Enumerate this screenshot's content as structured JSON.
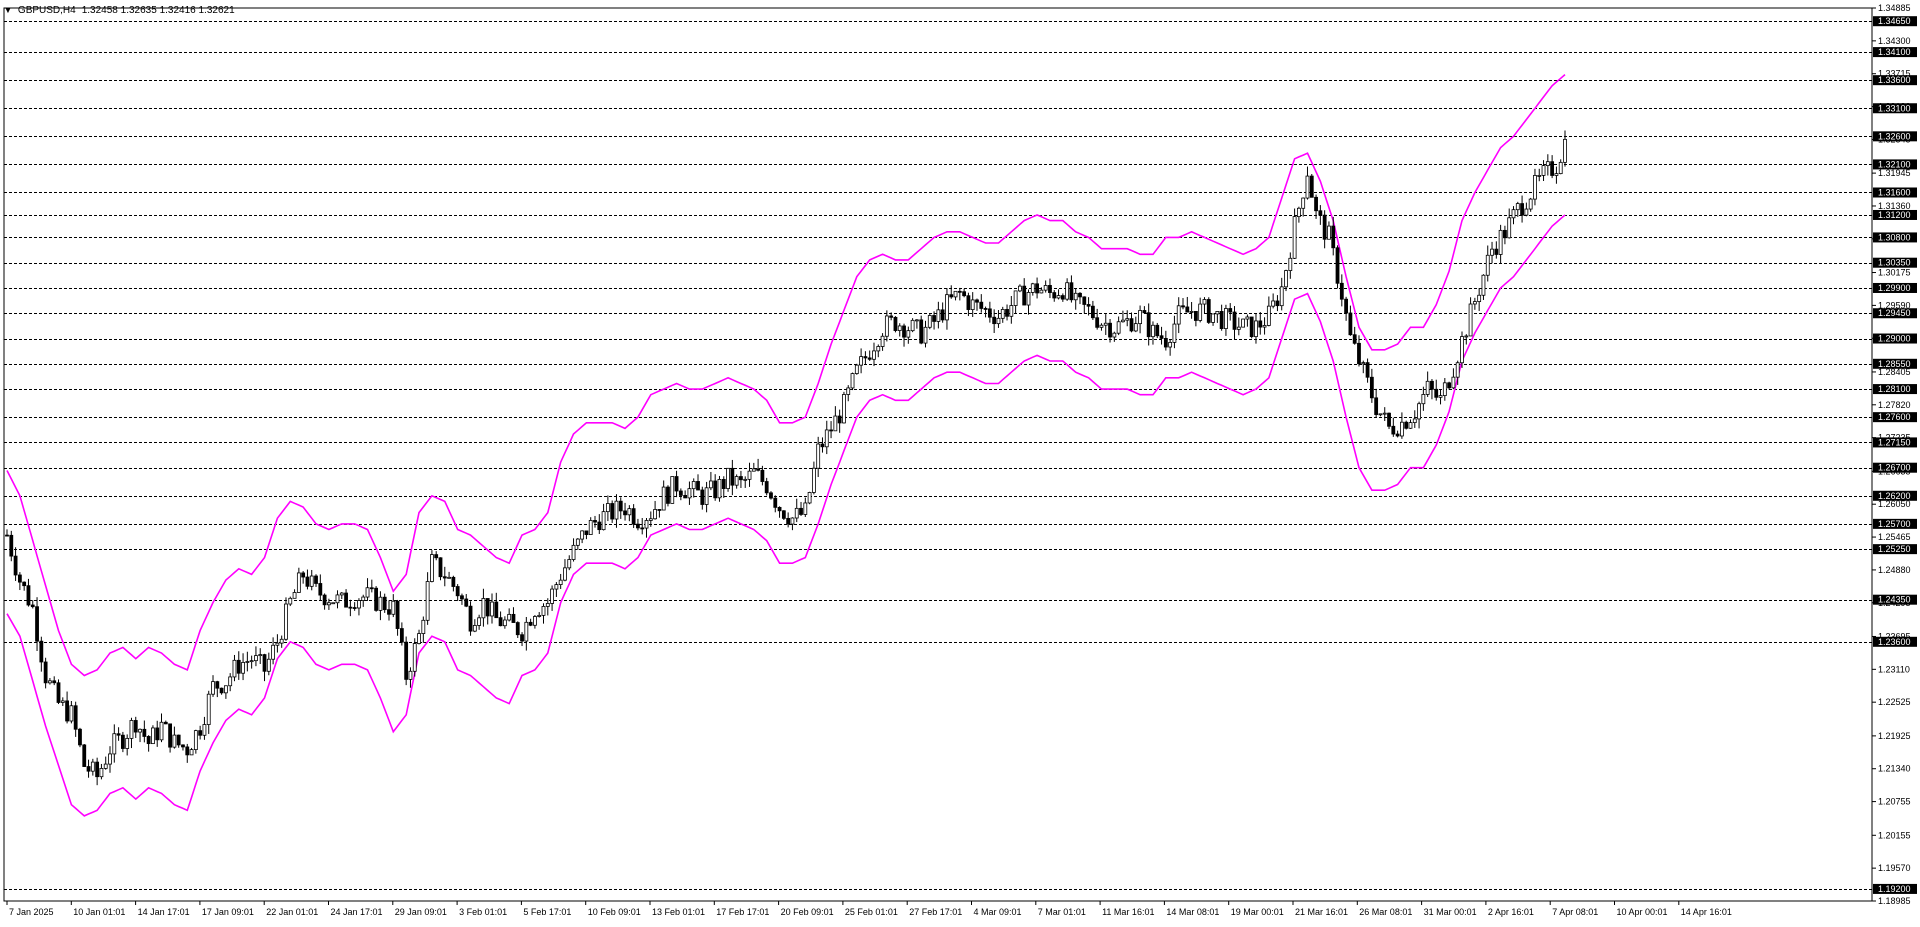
{
  "header": {
    "symbol_label": "GBPUSD,H4",
    "ohlc": "1.32458 1.32635 1.32416 1.32621"
  },
  "colors": {
    "background": "#ffffff",
    "candle": "#000000",
    "envelope": "#ff00ff",
    "level_line": "#000000",
    "level_tag_bg": "#000000",
    "level_tag_fg": "#ffffff"
  },
  "chart_data": {
    "type": "candlestick",
    "symbol": "GBPUSD",
    "timeframe": "H4",
    "ylim": [
      1.18985,
      1.34885
    ],
    "y_tick_labels": [
      "1.34885",
      "1.34300",
      "1.33715",
      "1.33130",
      "1.32545",
      "1.31945",
      "1.31360",
      "1.30775",
      "1.30175",
      "1.29590",
      "1.29005",
      "1.28405",
      "1.27820",
      "1.27235",
      "1.26635",
      "1.26050",
      "1.25465",
      "1.24880",
      "1.24295",
      "1.23695",
      "1.23110",
      "1.22525",
      "1.21925",
      "1.21340",
      "1.20755",
      "1.20155",
      "1.19570",
      "1.18985"
    ],
    "levels": [
      "1.34650",
      "1.34100",
      "1.33600",
      "1.33100",
      "1.32600",
      "1.32100",
      "1.31600",
      "1.31200",
      "1.30800",
      "1.30350",
      "1.29900",
      "1.29450",
      "1.29000",
      "1.28550",
      "1.28100",
      "1.27600",
      "1.27150",
      "1.26700",
      "1.26200",
      "1.25700",
      "1.25250",
      "1.24350",
      "1.23600",
      "1.19200"
    ],
    "x_labels": [
      "7 Jan 2025",
      "10 Jan 01:01",
      "14 Jan 17:01",
      "17 Jan 09:01",
      "22 Jan 01:01",
      "24 Jan 17:01",
      "29 Jan 09:01",
      "3 Feb 01:01",
      "5 Feb 17:01",
      "10 Feb 09:01",
      "13 Feb 01:01",
      "17 Feb 17:01",
      "20 Feb 09:01",
      "25 Feb 01:01",
      "27 Feb 17:01",
      "4 Mar 09:01",
      "7 Mar 01:01",
      "11 Mar 16:01",
      "14 Mar 08:01",
      "19 Mar 00:01",
      "21 Mar 16:01",
      "26 Mar 08:01",
      "31 Mar 00:01",
      "2 Apr 16:01",
      "7 Apr 08:01",
      "10 Apr 00:01",
      "14 Apr 16:01"
    ],
    "close_path": [
      [
        0,
        1.255
      ],
      [
        3,
        1.247
      ],
      [
        6,
        1.242
      ],
      [
        9,
        1.23
      ],
      [
        12,
        1.225
      ],
      [
        15,
        1.223
      ],
      [
        18,
        1.214
      ],
      [
        21,
        1.212
      ],
      [
        24,
        1.217
      ],
      [
        27,
        1.219
      ],
      [
        30,
        1.222
      ],
      [
        33,
        1.218
      ],
      [
        36,
        1.221
      ],
      [
        39,
        1.218
      ],
      [
        42,
        1.217
      ],
      [
        45,
        1.221
      ],
      [
        48,
        1.228
      ],
      [
        51,
        1.229
      ],
      [
        54,
        1.232
      ],
      [
        57,
        1.233
      ],
      [
        60,
        1.231
      ],
      [
        63,
        1.236
      ],
      [
        66,
        1.243
      ],
      [
        69,
        1.248
      ],
      [
        72,
        1.245
      ],
      [
        75,
        1.244
      ],
      [
        78,
        1.243
      ],
      [
        81,
        1.244
      ],
      [
        84,
        1.244
      ],
      [
        87,
        1.243
      ],
      [
        90,
        1.242
      ],
      [
        93,
        1.23
      ],
      [
        96,
        1.237
      ],
      [
        99,
        1.25
      ],
      [
        102,
        1.248
      ],
      [
        105,
        1.245
      ],
      [
        108,
        1.24
      ],
      [
        111,
        1.243
      ],
      [
        114,
        1.24
      ],
      [
        117,
        1.239
      ],
      [
        120,
        1.238
      ],
      [
        123,
        1.242
      ],
      [
        126,
        1.243
      ],
      [
        129,
        1.248
      ],
      [
        132,
        1.252
      ],
      [
        135,
        1.256
      ],
      [
        138,
        1.258
      ],
      [
        141,
        1.259
      ],
      [
        144,
        1.26
      ],
      [
        147,
        1.258
      ],
      [
        150,
        1.259
      ],
      [
        153,
        1.262
      ],
      [
        156,
        1.264
      ],
      [
        159,
        1.263
      ],
      [
        162,
        1.262
      ],
      [
        165,
        1.263
      ],
      [
        168,
        1.265
      ],
      [
        171,
        1.264
      ],
      [
        174,
        1.266
      ],
      [
        177,
        1.264
      ],
      [
        180,
        1.26
      ],
      [
        183,
        1.258
      ],
      [
        186,
        1.259
      ],
      [
        189,
        1.27
      ],
      [
        192,
        1.274
      ],
      [
        195,
        1.278
      ],
      [
        198,
        1.284
      ],
      [
        201,
        1.288
      ],
      [
        204,
        1.292
      ],
      [
        207,
        1.293
      ],
      [
        210,
        1.292
      ],
      [
        213,
        1.291
      ],
      [
        216,
        1.293
      ],
      [
        219,
        1.296
      ],
      [
        222,
        1.298
      ],
      [
        225,
        1.296
      ],
      [
        228,
        1.295
      ],
      [
        231,
        1.294
      ],
      [
        234,
        1.296
      ],
      [
        237,
        1.298
      ],
      [
        240,
        1.299
      ],
      [
        243,
        1.298
      ],
      [
        246,
        1.299
      ],
      [
        249,
        1.296
      ],
      [
        252,
        1.295
      ],
      [
        255,
        1.293
      ],
      [
        258,
        1.292
      ],
      [
        261,
        1.293
      ],
      [
        264,
        1.294
      ],
      [
        267,
        1.291
      ],
      [
        270,
        1.29
      ],
      [
        273,
        1.294
      ],
      [
        276,
        1.295
      ],
      [
        279,
        1.295
      ],
      [
        282,
        1.294
      ],
      [
        285,
        1.293
      ],
      [
        288,
        1.292
      ],
      [
        291,
        1.292
      ],
      [
        294,
        1.294
      ],
      [
        297,
        1.299
      ],
      [
        300,
        1.31
      ],
      [
        303,
        1.32
      ],
      [
        305,
        1.312
      ],
      [
        308,
        1.308
      ],
      [
        311,
        1.298
      ],
      [
        313,
        1.29
      ],
      [
        316,
        1.284
      ],
      [
        319,
        1.278
      ],
      [
        322,
        1.274
      ],
      [
        325,
        1.275
      ],
      [
        328,
        1.277
      ],
      [
        331,
        1.281
      ],
      [
        334,
        1.279
      ],
      [
        337,
        1.285
      ],
      [
        340,
        1.292
      ],
      [
        343,
        1.299
      ],
      [
        346,
        1.306
      ],
      [
        349,
        1.309
      ],
      [
        352,
        1.313
      ],
      [
        355,
        1.316
      ],
      [
        358,
        1.319
      ],
      [
        361,
        1.321
      ],
      [
        363,
        1.325
      ]
    ],
    "upper_envelope": [
      [
        0,
        1.2665
      ],
      [
        3,
        1.262
      ],
      [
        6,
        1.254
      ],
      [
        9,
        1.246
      ],
      [
        12,
        1.238
      ],
      [
        15,
        1.232
      ],
      [
        18,
        1.23
      ],
      [
        21,
        1.231
      ],
      [
        24,
        1.234
      ],
      [
        27,
        1.235
      ],
      [
        30,
        1.233
      ],
      [
        33,
        1.235
      ],
      [
        36,
        1.234
      ],
      [
        39,
        1.232
      ],
      [
        42,
        1.231
      ],
      [
        45,
        1.238
      ],
      [
        48,
        1.243
      ],
      [
        51,
        1.247
      ],
      [
        54,
        1.249
      ],
      [
        57,
        1.248
      ],
      [
        60,
        1.251
      ],
      [
        63,
        1.258
      ],
      [
        66,
        1.261
      ],
      [
        69,
        1.26
      ],
      [
        72,
        1.257
      ],
      [
        75,
        1.256
      ],
      [
        78,
        1.257
      ],
      [
        81,
        1.257
      ],
      [
        84,
        1.256
      ],
      [
        87,
        1.251
      ],
      [
        90,
        1.245
      ],
      [
        93,
        1.248
      ],
      [
        96,
        1.259
      ],
      [
        99,
        1.262
      ],
      [
        102,
        1.261
      ],
      [
        105,
        1.256
      ],
      [
        108,
        1.255
      ],
      [
        111,
        1.253
      ],
      [
        114,
        1.251
      ],
      [
        117,
        1.25
      ],
      [
        120,
        1.255
      ],
      [
        123,
        1.256
      ],
      [
        126,
        1.259
      ],
      [
        129,
        1.268
      ],
      [
        132,
        1.273
      ],
      [
        135,
        1.275
      ],
      [
        138,
        1.275
      ],
      [
        141,
        1.275
      ],
      [
        144,
        1.274
      ],
      [
        147,
        1.276
      ],
      [
        150,
        1.28
      ],
      [
        153,
        1.281
      ],
      [
        156,
        1.282
      ],
      [
        159,
        1.281
      ],
      [
        162,
        1.281
      ],
      [
        165,
        1.282
      ],
      [
        168,
        1.283
      ],
      [
        171,
        1.282
      ],
      [
        174,
        1.281
      ],
      [
        177,
        1.279
      ],
      [
        180,
        1.275
      ],
      [
        183,
        1.275
      ],
      [
        186,
        1.276
      ],
      [
        189,
        1.282
      ],
      [
        192,
        1.289
      ],
      [
        195,
        1.295
      ],
      [
        198,
        1.301
      ],
      [
        201,
        1.304
      ],
      [
        204,
        1.305
      ],
      [
        207,
        1.304
      ],
      [
        210,
        1.304
      ],
      [
        213,
        1.306
      ],
      [
        216,
        1.308
      ],
      [
        219,
        1.309
      ],
      [
        222,
        1.309
      ],
      [
        225,
        1.308
      ],
      [
        228,
        1.307
      ],
      [
        231,
        1.307
      ],
      [
        234,
        1.309
      ],
      [
        237,
        1.311
      ],
      [
        240,
        1.312
      ],
      [
        243,
        1.311
      ],
      [
        246,
        1.311
      ],
      [
        249,
        1.309
      ],
      [
        252,
        1.308
      ],
      [
        255,
        1.306
      ],
      [
        258,
        1.306
      ],
      [
        261,
        1.306
      ],
      [
        264,
        1.305
      ],
      [
        267,
        1.305
      ],
      [
        270,
        1.308
      ],
      [
        273,
        1.308
      ],
      [
        276,
        1.309
      ],
      [
        279,
        1.308
      ],
      [
        282,
        1.307
      ],
      [
        285,
        1.306
      ],
      [
        288,
        1.305
      ],
      [
        291,
        1.306
      ],
      [
        294,
        1.308
      ],
      [
        297,
        1.315
      ],
      [
        300,
        1.322
      ],
      [
        303,
        1.323
      ],
      [
        306,
        1.318
      ],
      [
        309,
        1.311
      ],
      [
        312,
        1.301
      ],
      [
        315,
        1.292
      ],
      [
        318,
        1.288
      ],
      [
        321,
        1.288
      ],
      [
        324,
        1.289
      ],
      [
        327,
        1.292
      ],
      [
        330,
        1.292
      ],
      [
        333,
        1.296
      ],
      [
        336,
        1.302
      ],
      [
        339,
        1.311
      ],
      [
        342,
        1.316
      ],
      [
        345,
        1.32
      ],
      [
        348,
        1.324
      ],
      [
        351,
        1.326
      ],
      [
        354,
        1.329
      ],
      [
        357,
        1.332
      ],
      [
        360,
        1.335
      ],
      [
        363,
        1.337
      ]
    ],
    "lower_envelope": [
      [
        0,
        1.241
      ],
      [
        3,
        1.237
      ],
      [
        6,
        1.229
      ],
      [
        9,
        1.221
      ],
      [
        12,
        1.214
      ],
      [
        15,
        1.207
      ],
      [
        18,
        1.205
      ],
      [
        21,
        1.206
      ],
      [
        24,
        1.209
      ],
      [
        27,
        1.21
      ],
      [
        30,
        1.208
      ],
      [
        33,
        1.21
      ],
      [
        36,
        1.209
      ],
      [
        39,
        1.207
      ],
      [
        42,
        1.206
      ],
      [
        45,
        1.213
      ],
      [
        48,
        1.218
      ],
      [
        51,
        1.222
      ],
      [
        54,
        1.224
      ],
      [
        57,
        1.223
      ],
      [
        60,
        1.226
      ],
      [
        63,
        1.233
      ],
      [
        66,
        1.236
      ],
      [
        69,
        1.235
      ],
      [
        72,
        1.232
      ],
      [
        75,
        1.231
      ],
      [
        78,
        1.232
      ],
      [
        81,
        1.232
      ],
      [
        84,
        1.231
      ],
      [
        87,
        1.226
      ],
      [
        90,
        1.22
      ],
      [
        93,
        1.223
      ],
      [
        96,
        1.234
      ],
      [
        99,
        1.237
      ],
      [
        102,
        1.236
      ],
      [
        105,
        1.231
      ],
      [
        108,
        1.23
      ],
      [
        111,
        1.228
      ],
      [
        114,
        1.226
      ],
      [
        117,
        1.225
      ],
      [
        120,
        1.23
      ],
      [
        123,
        1.231
      ],
      [
        126,
        1.234
      ],
      [
        129,
        1.243
      ],
      [
        132,
        1.248
      ],
      [
        135,
        1.25
      ],
      [
        138,
        1.25
      ],
      [
        141,
        1.25
      ],
      [
        144,
        1.249
      ],
      [
        147,
        1.251
      ],
      [
        150,
        1.255
      ],
      [
        153,
        1.256
      ],
      [
        156,
        1.257
      ],
      [
        159,
        1.256
      ],
      [
        162,
        1.256
      ],
      [
        165,
        1.257
      ],
      [
        168,
        1.258
      ],
      [
        171,
        1.257
      ],
      [
        174,
        1.256
      ],
      [
        177,
        1.254
      ],
      [
        180,
        1.25
      ],
      [
        183,
        1.25
      ],
      [
        186,
        1.251
      ],
      [
        189,
        1.257
      ],
      [
        192,
        1.264
      ],
      [
        195,
        1.27
      ],
      [
        198,
        1.276
      ],
      [
        201,
        1.279
      ],
      [
        204,
        1.28
      ],
      [
        207,
        1.279
      ],
      [
        210,
        1.279
      ],
      [
        213,
        1.281
      ],
      [
        216,
        1.283
      ],
      [
        219,
        1.284
      ],
      [
        222,
        1.284
      ],
      [
        225,
        1.283
      ],
      [
        228,
        1.282
      ],
      [
        231,
        1.282
      ],
      [
        234,
        1.284
      ],
      [
        237,
        1.286
      ],
      [
        240,
        1.287
      ],
      [
        243,
        1.286
      ],
      [
        246,
        1.286
      ],
      [
        249,
        1.284
      ],
      [
        252,
        1.283
      ],
      [
        255,
        1.281
      ],
      [
        258,
        1.281
      ],
      [
        261,
        1.281
      ],
      [
        264,
        1.28
      ],
      [
        267,
        1.28
      ],
      [
        270,
        1.283
      ],
      [
        273,
        1.283
      ],
      [
        276,
        1.284
      ],
      [
        279,
        1.283
      ],
      [
        282,
        1.282
      ],
      [
        285,
        1.281
      ],
      [
        288,
        1.28
      ],
      [
        291,
        1.281
      ],
      [
        294,
        1.283
      ],
      [
        297,
        1.29
      ],
      [
        300,
        1.297
      ],
      [
        303,
        1.298
      ],
      [
        306,
        1.293
      ],
      [
        309,
        1.286
      ],
      [
        312,
        1.276
      ],
      [
        315,
        1.267
      ],
      [
        318,
        1.263
      ],
      [
        321,
        1.263
      ],
      [
        324,
        1.264
      ],
      [
        327,
        1.267
      ],
      [
        330,
        1.267
      ],
      [
        333,
        1.271
      ],
      [
        336,
        1.277
      ],
      [
        339,
        1.286
      ],
      [
        342,
        1.291
      ],
      [
        345,
        1.295
      ],
      [
        348,
        1.299
      ],
      [
        351,
        1.301
      ],
      [
        354,
        1.304
      ],
      [
        357,
        1.307
      ],
      [
        360,
        1.31
      ],
      [
        363,
        1.312
      ]
    ]
  }
}
